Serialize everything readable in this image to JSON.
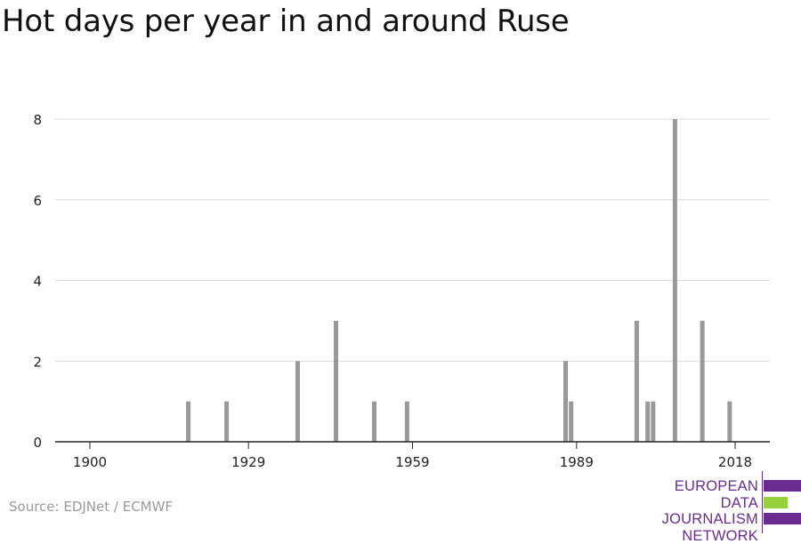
{
  "title": "Hot days per year in and around Ruse",
  "source": "Source: EDJNet / ECMWF",
  "logo": {
    "lines": [
      "EUROPEAN",
      "DATA JOURNALISM",
      "NETWORK"
    ],
    "colors": {
      "purple": "#6a2c91",
      "green": "#94d13a"
    }
  },
  "chart_data": {
    "type": "bar",
    "title": "Hot days per year in and around Ruse",
    "xlabel": "",
    "ylabel": "",
    "xlim": [
      1896,
      2020
    ],
    "ylim": [
      0,
      8
    ],
    "x_ticks": [
      1900,
      1929,
      1959,
      1989,
      2018
    ],
    "y_ticks": [
      0,
      2,
      4,
      6,
      8
    ],
    "grid": true,
    "bar_color": "#999999",
    "x": [
      1918,
      1925,
      1938,
      1945,
      1952,
      1958,
      1987,
      1988,
      2000,
      2002,
      2003,
      2007,
      2012,
      2017
    ],
    "values": [
      1,
      1,
      2,
      3,
      1,
      1,
      2,
      1,
      3,
      1,
      1,
      8,
      3,
      1
    ]
  }
}
